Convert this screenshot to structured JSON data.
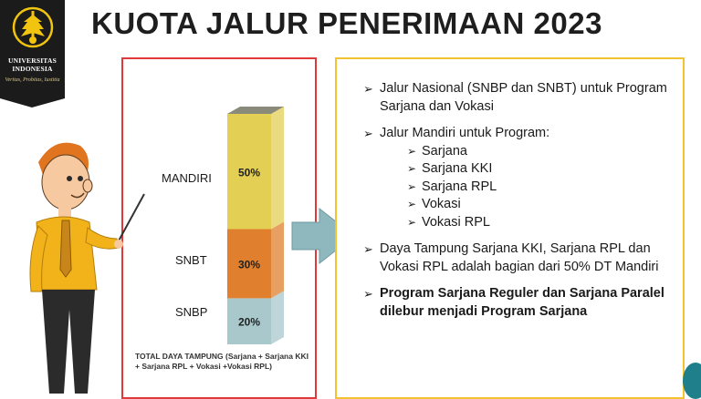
{
  "logo": {
    "name_line1": "UNIVERSITAS",
    "name_line2": "INDONESIA",
    "motto": "Veritas, Probitas, Iustitia",
    "emblem_icon": "university-emblem-icon"
  },
  "title": "KUOTA JALUR PENERIMAAN 2023",
  "colors": {
    "mandiri": "#e4cf55",
    "snbt": "#e0802e",
    "snbp": "#a8c8cc",
    "left_frame": "#e0393a",
    "right_frame": "#f2c230",
    "arrow": "#8fb8be"
  },
  "chart_data": {
    "type": "bar",
    "stacked": true,
    "categories": [
      "SNBP",
      "SNBT",
      "MANDIRI"
    ],
    "values": [
      20,
      30,
      50
    ],
    "data_labels": [
      "20%",
      "30%",
      "50%"
    ],
    "unit": "%"
  },
  "footnote": "TOTAL DAYA TAMPUNG (Sarjana + Sarjana KKI + Sarjana RPL + Vokasi +Vokasi RPL)",
  "bullets": [
    {
      "text": "Jalur Nasional (SNBP dan SNBT) untuk Program Sarjana dan Vokasi"
    },
    {
      "text": "Jalur Mandiri untuk Program:",
      "subs": [
        "Sarjana",
        "Sarjana KKI",
        "Sarjana RPL",
        "Vokasi",
        "Vokasi RPL"
      ]
    },
    {
      "text": "Daya Tampung Sarjana KKI, Sarjana RPL dan Vokasi RPL adalah bagian dari 50% DT Mandiri"
    },
    {
      "text": "Program Sarjana Reguler dan Sarjana Paralel dilebur menjadi Program Sarjana"
    }
  ],
  "bullet_marker": "➢"
}
